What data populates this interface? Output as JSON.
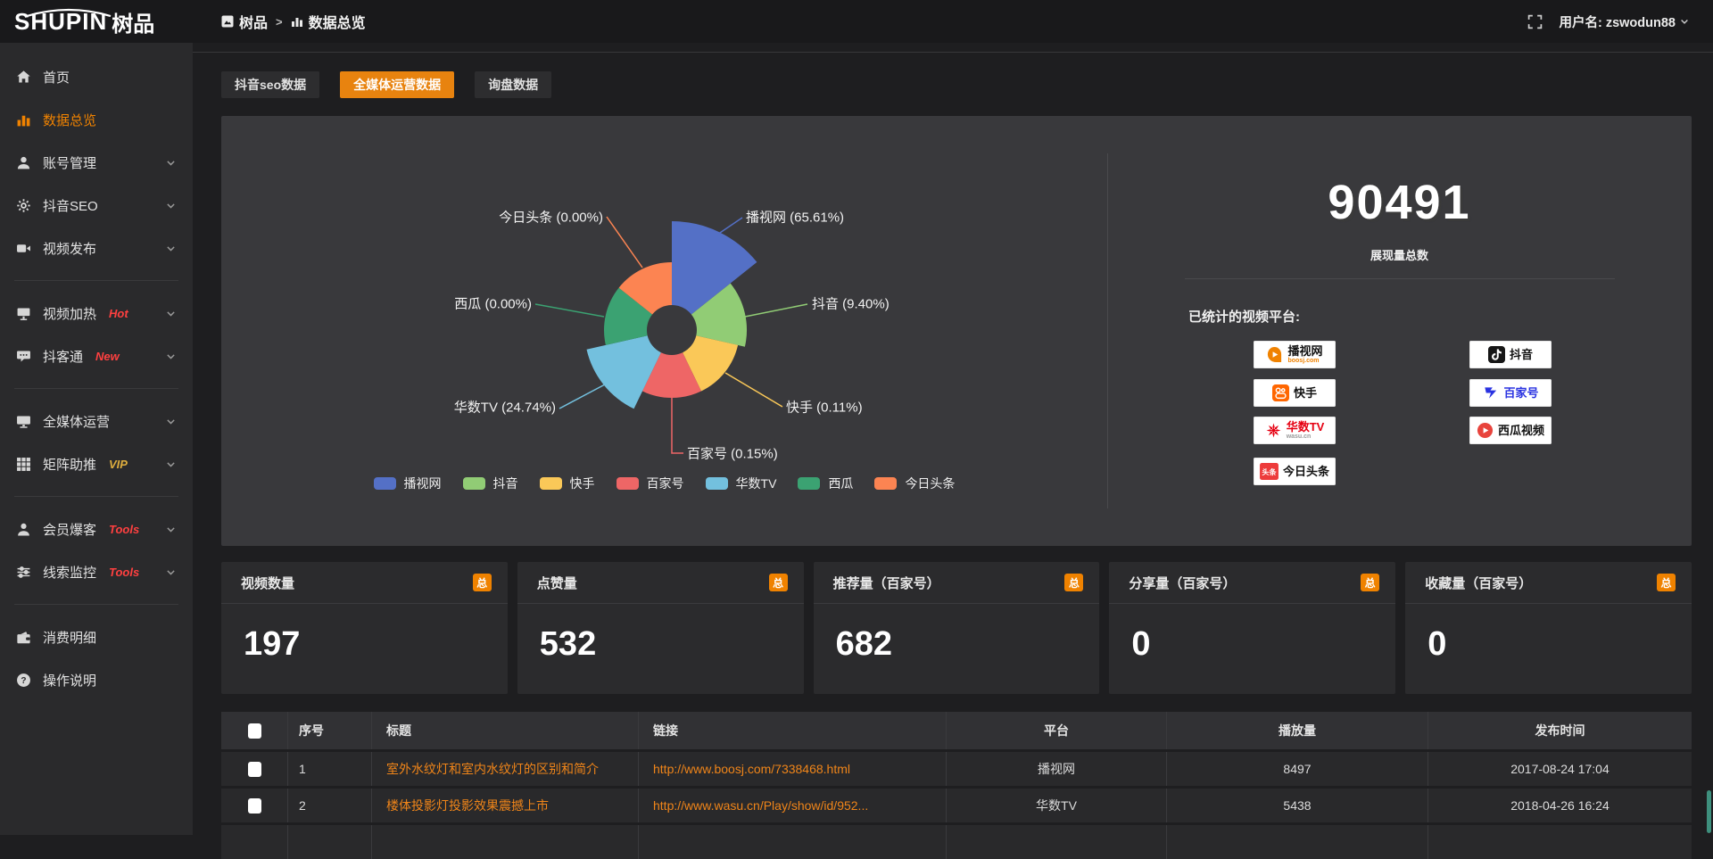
{
  "topbar": {
    "logo_text": "SHUPIN",
    "logo_suffix": "树品",
    "breadcrumb": {
      "root": "树品",
      "separator": ">",
      "current": "数据总览"
    },
    "username": "用户名: zswodun88"
  },
  "sidebar": {
    "items": [
      {
        "key": "home",
        "label": "首页",
        "icon": "home"
      },
      {
        "key": "data-overview",
        "label": "数据总览",
        "icon": "chart",
        "active": true
      },
      {
        "key": "account-management",
        "label": "账号管理",
        "icon": "user",
        "chevron": true
      },
      {
        "key": "douyin-seo",
        "label": "抖音SEO",
        "icon": "gear",
        "chevron": true
      },
      {
        "key": "video-publish",
        "label": "视频发布",
        "icon": "video",
        "chevron": true
      },
      {
        "divider": true
      },
      {
        "key": "video-heating",
        "label": "视频加热",
        "icon": "screen",
        "badge": "Hot",
        "badge_color": "#ff4040",
        "chevron": true
      },
      {
        "key": "douketong",
        "label": "抖客通",
        "icon": "chat",
        "badge": "New",
        "badge_color": "#ff4040",
        "chevron": true
      },
      {
        "divider": true
      },
      {
        "key": "media-operation",
        "label": "全媒体运营",
        "icon": "monitor",
        "chevron": true
      },
      {
        "key": "matrix-boost",
        "label": "矩阵助推",
        "icon": "grid",
        "badge": "VIP",
        "badge_color": "#dfae3e",
        "chevron": true
      },
      {
        "divider": true
      },
      {
        "key": "member-explosion",
        "label": "会员爆客",
        "icon": "user2",
        "badge": "Tools",
        "badge_color": "#ff4040",
        "chevron": true
      },
      {
        "key": "lead-monitoring",
        "label": "线索监控",
        "icon": "sliders",
        "badge": "Tools",
        "badge_color": "#ff4040",
        "chevron": true
      },
      {
        "divider": true
      },
      {
        "key": "consumption-detail",
        "label": "消费明细",
        "icon": "wallet"
      },
      {
        "key": "operation-guide",
        "label": "操作说明",
        "icon": "question"
      }
    ]
  },
  "tabs": [
    {
      "label": "抖音seo数据",
      "active": false,
      "key": "douyin-seo-data"
    },
    {
      "label": "全媒体运营数据",
      "active": true,
      "key": "all-media-data"
    },
    {
      "label": "询盘数据",
      "active": false,
      "key": "inquiry-data"
    }
  ],
  "chart_data": {
    "type": "pie",
    "variant": "nightingale-rose",
    "unit": "percent",
    "slices": [
      {
        "name": "播视网",
        "value": 65.61,
        "color": "#5470c6"
      },
      {
        "name": "抖音",
        "value": 9.4,
        "color": "#91cc75"
      },
      {
        "name": "快手",
        "value": 0.11,
        "color": "#fac858"
      },
      {
        "name": "百家号",
        "value": 0.15,
        "color": "#ee6666"
      },
      {
        "name": "华数TV",
        "value": 24.74,
        "color": "#73c0de"
      },
      {
        "name": "西瓜",
        "value": 0.0,
        "color": "#3ba272"
      },
      {
        "name": "今日头条",
        "value": 0.0,
        "color": "#fc8452"
      }
    ],
    "legend": [
      "播视网",
      "抖音",
      "快手",
      "百家号",
      "华数TV",
      "西瓜",
      "今日头条"
    ],
    "legend_position": "bottom"
  },
  "overview": {
    "total_value": "90491",
    "total_label": "展现量总数",
    "platforms_title": "已统计的视频平台:",
    "platforms": [
      {
        "name": "播视网",
        "sub": "boosj.com",
        "sub_color": "#f08200",
        "icon": "boosj",
        "column": 0
      },
      {
        "name": "抖音",
        "icon": "douyin",
        "column": 1
      },
      {
        "name": "快手",
        "icon": "kuaishou",
        "column": 0
      },
      {
        "name": "百家号",
        "icon": "baijiahao",
        "name_color": "#2932e1",
        "column": 1
      },
      {
        "name": "华数TV",
        "sub": "wasu.cn",
        "sub_color": "#999999",
        "name_color": "#e60012",
        "icon": "wasu",
        "column": 0
      },
      {
        "name": "西瓜视频",
        "icon": "xigua",
        "column": 1
      },
      {
        "name": "今日头条",
        "icon": "toutiao",
        "column": 0
      }
    ]
  },
  "stats": [
    {
      "title": "视频数量",
      "badge": "总",
      "value": "197"
    },
    {
      "title": "点赞量",
      "badge": "总",
      "value": "532"
    },
    {
      "title": "推荐量（百家号）",
      "badge": "总",
      "value": "682"
    },
    {
      "title": "分享量（百家号）",
      "badge": "总",
      "value": "0"
    },
    {
      "title": "收藏量（百家号）",
      "badge": "总",
      "value": "0"
    }
  ],
  "table": {
    "headers": [
      "序号",
      "标题",
      "链接",
      "平台",
      "播放量",
      "发布时间"
    ],
    "rows": [
      {
        "checked": false,
        "index": "1",
        "title": "室外水纹灯和室内水纹灯的区别和简介",
        "link": "http://www.boosj.com/7338468.html",
        "platform": "播视网",
        "views": "8497",
        "time": "2017-08-24 17:04"
      },
      {
        "checked": false,
        "index": "2",
        "title": "楼体投影灯投影效果震撼上市",
        "link": "http://www.wasu.cn/Play/show/id/952...",
        "platform": "华数TV",
        "views": "5438",
        "time": "2018-04-26 16:24"
      }
    ]
  },
  "colors": {
    "accent_orange": "#ef8201",
    "panel_bg": "#39393c",
    "sidebar_bg": "#2a2a2c",
    "page_bg": "#1e1e20"
  }
}
